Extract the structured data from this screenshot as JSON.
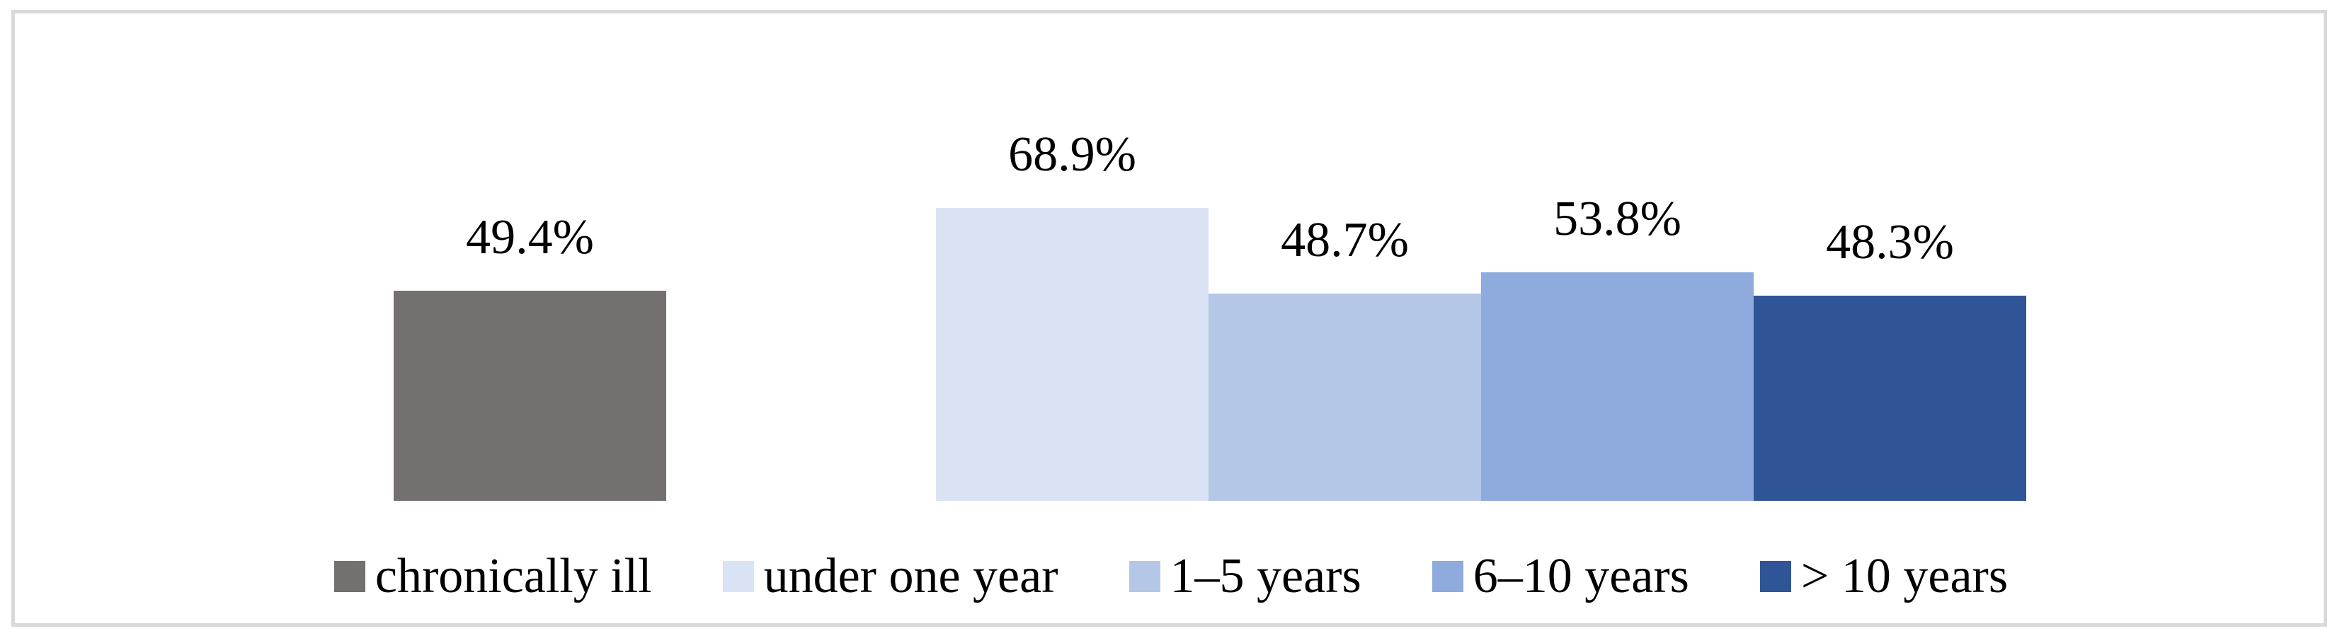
{
  "figure": {
    "background_color": "#ffffff",
    "frame_border_color": "#d9d9d9",
    "data_label_color": "#000000"
  },
  "chart_data": {
    "type": "bar",
    "title": "",
    "xlabel": "",
    "ylabel": "",
    "categories": [
      "chronically ill",
      "under one year",
      "1–5 years",
      "6–10 years",
      "> 10 years"
    ],
    "values": [
      49.4,
      68.9,
      48.7,
      53.8,
      48.3
    ],
    "data_labels": [
      "49.4%",
      "68.9%",
      "48.7%",
      "53.8%",
      "48.3%"
    ],
    "bar_colors": [
      "#747070",
      "#dae3f3",
      "#b4c7e7",
      "#8faadc",
      "#2f5597"
    ],
    "ylim": [
      0,
      80
    ],
    "unit": "%",
    "grid": false,
    "axes_visible": false,
    "tick_labels_visible": false,
    "legend_position": "bottom"
  }
}
